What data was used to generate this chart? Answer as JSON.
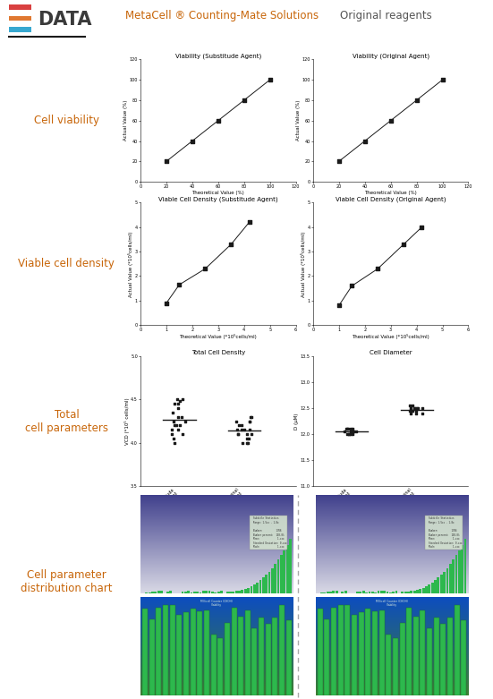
{
  "header_left": "MetaCell ® Counting-Mate Solutions",
  "header_right": "Original reagents",
  "section1_label": "Cell viability",
  "section2_label": "Viable cell density",
  "section3_label": "Total\ncell parameters",
  "section4_label": "Cell parameter\ndistribution chart",
  "plot1_title": "Viability (Substitude Agent)",
  "plot2_title": "Viability (Original Agent)",
  "plot3_title": "Viable Cell Density (Substitude Agent)",
  "plot4_title": "Viable Cell Density (Original Agent)",
  "plot5_title": "Total Cell Density",
  "plot6_title": "Cell Diameter",
  "viability_x": [
    20,
    40,
    60,
    80,
    100
  ],
  "viability_y": [
    20,
    40,
    60,
    80,
    100
  ],
  "vcd_x": [
    1,
    1.5,
    2.5,
    3.5,
    4.2
  ],
  "vcd_y": [
    0.9,
    1.65,
    2.3,
    3.3,
    4.2
  ],
  "vcd2_x": [
    1,
    1.5,
    2.5,
    3.5,
    4.2
  ],
  "vcd2_y": [
    0.8,
    1.6,
    2.3,
    3.3,
    4.0
  ],
  "tcd_sub_y": [
    4.3,
    4.1,
    4.15,
    4.2,
    4.25,
    4.35,
    4.45,
    4.5,
    4.15,
    4.2,
    4.4,
    4.5,
    4.0,
    4.25,
    4.1,
    4.3,
    4.45,
    4.48,
    4.05,
    4.2
  ],
  "tcd_orig_y": [
    4.05,
    4.1,
    4.15,
    4.0,
    4.25,
    4.3,
    4.1,
    4.15,
    4.2,
    4.25,
    4.1,
    4.0,
    4.3,
    4.15,
    4.05,
    4.2,
    4.1,
    4.15,
    4.25,
    4.0
  ],
  "diam_sub_y": [
    12.0,
    12.05,
    12.1,
    12.1,
    12.05,
    12.0,
    12.1,
    12.05,
    12.0,
    12.1,
    12.05,
    12.0,
    12.1,
    12.05,
    12.0,
    12.05
  ],
  "diam_orig_y": [
    12.4,
    12.45,
    12.5,
    12.45,
    12.5,
    12.55,
    12.5,
    12.45,
    12.4,
    12.5,
    12.55,
    12.5,
    12.45,
    12.5,
    12.4,
    12.45
  ],
  "bg_color": "#ffffff",
  "label_color_orange": "#c8660a",
  "label_color_dark": "#555555",
  "logo_red": "#d94040",
  "logo_orange": "#e07830",
  "logo_blue": "#38a8d0",
  "dark": "#1a1a1a"
}
